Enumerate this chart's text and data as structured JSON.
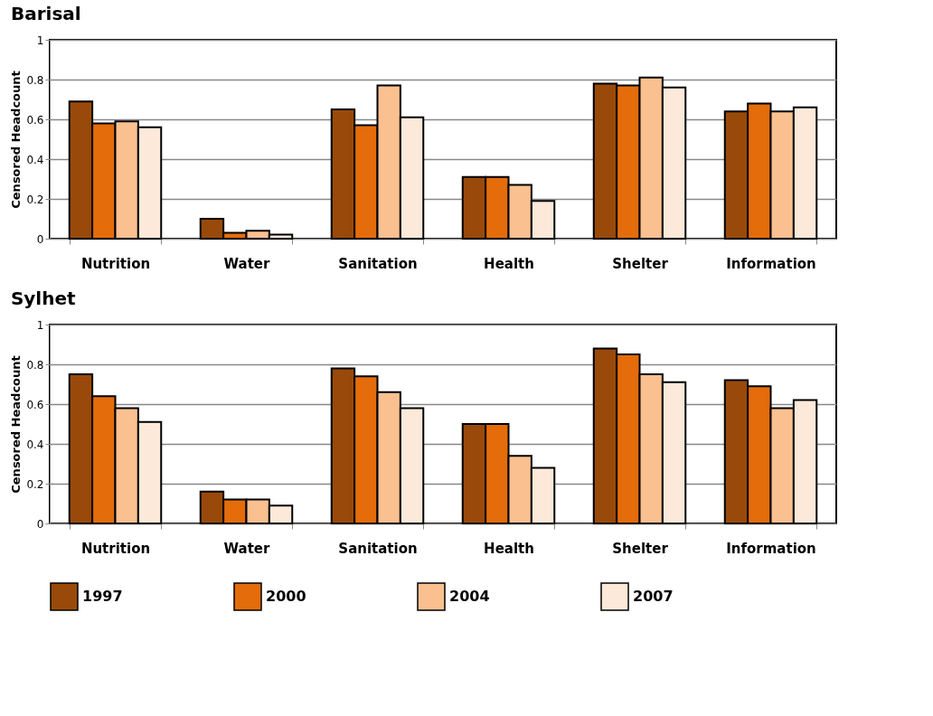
{
  "chart_data": [
    {
      "type": "bar",
      "title": "Barisal",
      "ylabel": "Censored Headcount",
      "categories": [
        "Nutrition",
        "Water",
        "Sanitation",
        "Health",
        "Shelter",
        "Information"
      ],
      "ylim": [
        0,
        1
      ],
      "yticks": [
        0,
        0.2,
        0.4,
        0.6,
        0.8,
        1
      ],
      "grid": "y",
      "legend": false,
      "series": [
        {
          "color": "#994a0a",
          "values": [
            0.69,
            0.1,
            0.65,
            0.31,
            0.78,
            0.64
          ]
        },
        {
          "color": "#e46c0a",
          "values": [
            0.58,
            0.03,
            0.57,
            0.31,
            0.77,
            0.68
          ]
        },
        {
          "color": "#fac090",
          "values": [
            0.59,
            0.04,
            0.77,
            0.27,
            0.81,
            0.64
          ]
        },
        {
          "color": "#fde9d9",
          "values": [
            0.56,
            0.02,
            0.61,
            0.19,
            0.76,
            0.66
          ]
        }
      ]
    },
    {
      "type": "bar",
      "title": "Sylhet",
      "ylabel": "Censored Headcount",
      "categories": [
        "Nutrition",
        "Water",
        "Sanitation",
        "Health",
        "Shelter",
        "Information"
      ],
      "ylim": [
        0,
        1
      ],
      "yticks": [
        0,
        0.2,
        0.4,
        0.6,
        0.8,
        1
      ],
      "grid": "y",
      "legend": "bottom",
      "series": [
        {
          "name": "1997",
          "color": "#994a0a",
          "values": [
            0.75,
            0.16,
            0.78,
            0.5,
            0.88,
            0.72
          ]
        },
        {
          "name": "2000",
          "color": "#e46c0a",
          "values": [
            0.64,
            0.12,
            0.74,
            0.5,
            0.85,
            0.69
          ]
        },
        {
          "name": "2004",
          "color": "#fac090",
          "values": [
            0.58,
            0.12,
            0.66,
            0.34,
            0.75,
            0.58
          ]
        },
        {
          "name": "2007",
          "color": "#fde9d9",
          "values": [
            0.51,
            0.09,
            0.58,
            0.28,
            0.71,
            0.62
          ]
        }
      ]
    }
  ]
}
